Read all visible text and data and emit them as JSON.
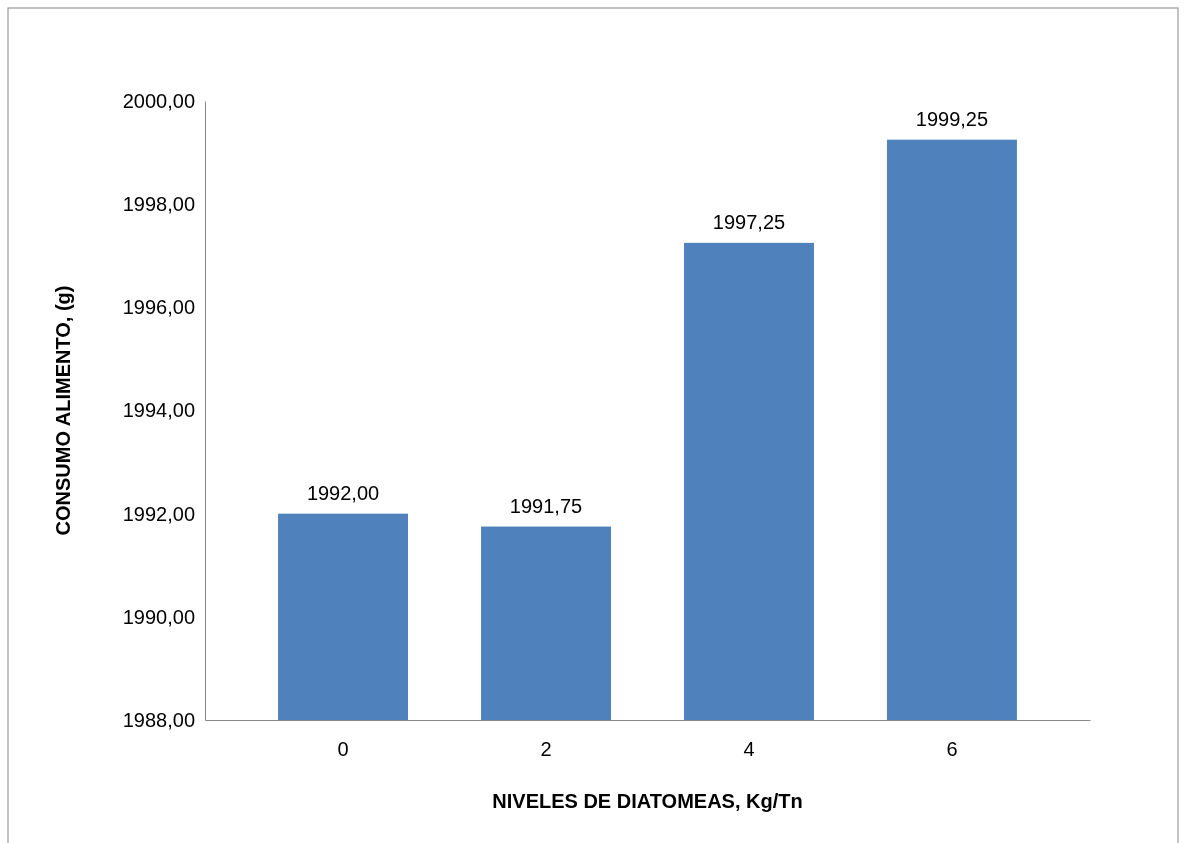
{
  "chart_data": {
    "type": "bar",
    "xlabel": "NIVELES DE DIATOMEAS, Kg/Tn",
    "ylabel": "CONSUMO ALIMENTO, (g)",
    "categories": [
      "0",
      "2",
      "4",
      "6"
    ],
    "values": [
      1992,
      1991.75,
      1997.25,
      1999.25
    ],
    "value_labels": [
      "1992,00",
      "1991,75",
      "1997,25",
      "1999,25"
    ],
    "color": "#4f81bd",
    "ylim": [
      1988,
      2000
    ],
    "yticks": [
      {
        "value": 1988,
        "label": "1988,00"
      },
      {
        "value": 1990,
        "label": "1990,00"
      },
      {
        "value": 1992,
        "label": "1992,00"
      },
      {
        "value": 1994,
        "label": "1994,00"
      },
      {
        "value": 1996,
        "label": "1996,00"
      },
      {
        "value": 1998,
        "label": "1998,00"
      },
      {
        "value": 2000,
        "label": "2000,00"
      }
    ],
    "grid": false,
    "legend": false
  }
}
